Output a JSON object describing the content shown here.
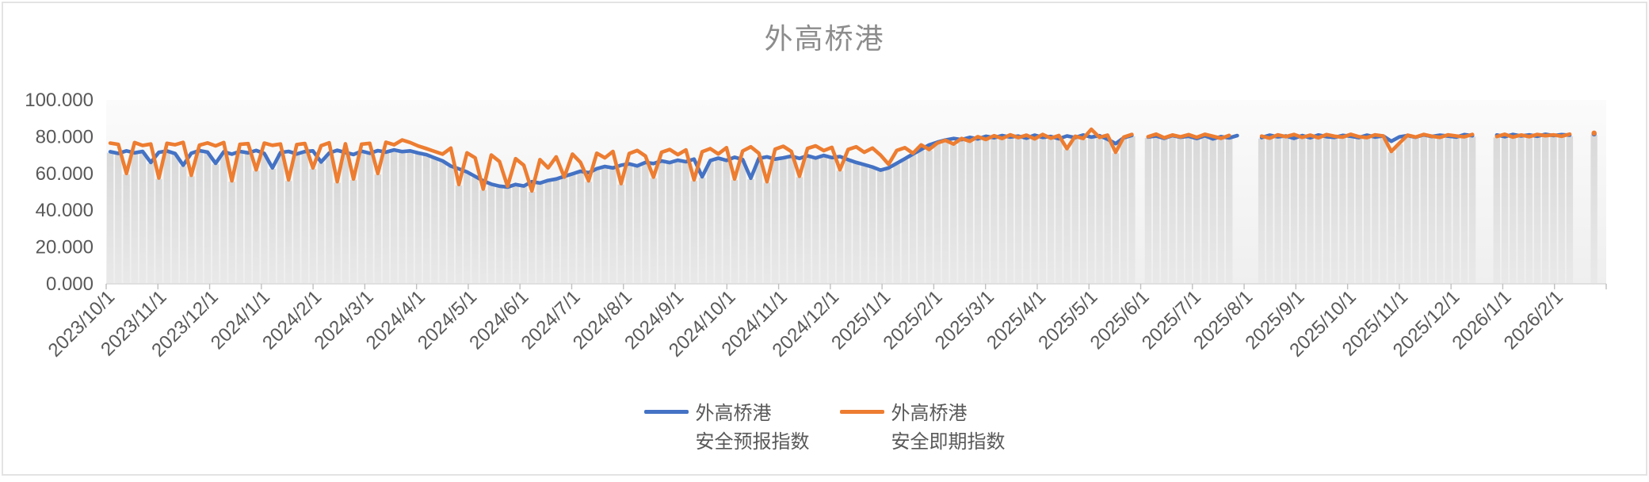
{
  "chart_data": {
    "type": "line",
    "title": "外高桥港",
    "ylim": [
      0,
      100
    ],
    "yticks": [
      {
        "value": 0,
        "label": "0.000"
      },
      {
        "value": 20,
        "label": "20.000"
      },
      {
        "value": 40,
        "label": "40.000"
      },
      {
        "value": 60,
        "label": "60.000"
      },
      {
        "value": 80,
        "label": "80.000"
      },
      {
        "value": 100,
        "label": "100.000"
      }
    ],
    "x_tick_labels": [
      "2023/10/1",
      "2023/11/1",
      "2023/12/1",
      "2024/1/1",
      "2024/2/1",
      "2024/3/1",
      "2024/4/1",
      "2024/5/1",
      "2024/6/1",
      "2024/7/1",
      "2024/8/1",
      "2024/9/1",
      "2024/10/1",
      "2024/11/1",
      "2024/12/1",
      "2025/1/1",
      "2025/2/1",
      "2025/3/1",
      "2025/4/1",
      "2025/5/1",
      "2025/6/1",
      "2025/7/1",
      "2025/8/1",
      "2025/9/1",
      "2025/10/1",
      "2025/11/1",
      "2025/12/1",
      "2026/1/1",
      "2026/2/1"
    ],
    "legend_position": "bottom",
    "grid": false,
    "background_columns": {
      "derived": "min(series values) - 0.5",
      "color_top": "#d9d9d9",
      "color_bottom": "#e9e9e9"
    },
    "axis_color": "#d9d9d9",
    "tick_color": "#bfbfbf",
    "label_color": "#595959",
    "series": [
      {
        "name": "外高桥港 安全预报指数",
        "color": "#4472C4",
        "values": [
          71.8,
          70.9,
          72.3,
          71.2,
          72.0,
          66.0,
          71.5,
          72.2,
          70.8,
          64.5,
          71.0,
          72.4,
          71.6,
          65.5,
          71.8,
          70.5,
          72.0,
          71.2,
          72.5,
          70.9,
          63.0,
          71.4,
          72.0,
          70.6,
          71.9,
          72.3,
          66.2,
          71.1,
          72.6,
          71.4,
          70.3,
          72.1,
          71.0,
          72.4,
          71.6,
          72.8,
          71.9,
          72.3,
          71.1,
          70.2,
          68.5,
          66.8,
          64.0,
          62.5,
          60.8,
          58.4,
          56.0,
          54.2,
          53.1,
          52.6,
          54.0,
          53.2,
          55.5,
          54.8,
          56.2,
          57.0,
          58.4,
          59.8,
          61.2,
          60.4,
          62.6,
          63.8,
          63.0,
          64.5,
          65.2,
          64.1,
          66.0,
          65.4,
          66.8,
          65.9,
          67.2,
          66.4,
          67.8,
          58.2,
          67.0,
          68.3,
          67.1,
          68.8,
          67.6,
          57.4,
          68.2,
          69.0,
          67.8,
          68.5,
          69.4,
          68.2,
          69.6,
          68.4,
          69.8,
          68.6,
          69.2,
          67.5,
          66.0,
          64.8,
          63.5,
          61.8,
          63.0,
          65.5,
          68.0,
          70.5,
          73.0,
          75.5,
          77.0,
          78.2,
          79.0,
          78.4,
          79.6,
          78.8,
          80.2,
          79.4,
          80.6,
          79.8,
          80.3,
          79.2,
          80.8,
          79.6,
          80.1,
          78.9,
          80.4,
          79.5,
          80.9,
          79.8,
          80.5,
          78.6,
          76.2,
          79.4,
          80.7,
          null,
          79.8,
          80.4,
          79.1,
          80.6,
          79.7,
          80.2,
          79.0,
          80.5,
          78.8,
          80.0,
          79.3,
          80.6,
          null,
          null,
          79.5,
          80.8,
          79.9,
          80.4,
          79.1,
          80.6,
          79.4,
          80.9,
          80.0,
          79.6,
          80.7,
          80.2,
          79.5,
          80.8,
          79.8,
          80.4,
          77.5,
          79.9,
          80.6,
          79.7,
          81.0,
          80.1,
          80.8,
          80.3,
          79.8,
          81.1,
          80.5,
          null,
          null,
          80.9,
          80.0,
          81.2,
          80.4,
          81.0,
          80.2,
          81.3,
          80.6,
          81.1,
          80.8,
          null,
          null,
          81.5,
          null
        ]
      },
      {
        "name": "外高桥港 安全即期指数",
        "color": "#ED7D31",
        "values": [
          76.5,
          75.8,
          60.0,
          76.8,
          75.2,
          76.0,
          57.5,
          76.4,
          75.6,
          76.9,
          59.0,
          75.4,
          76.6,
          75.0,
          76.8,
          56.0,
          75.8,
          76.2,
          62.0,
          76.5,
          75.3,
          76.0,
          56.5,
          75.7,
          76.3,
          63.0,
          75.1,
          76.7,
          55.5,
          76.1,
          57.0,
          75.9,
          76.4,
          60.0,
          77.0,
          75.6,
          78.2,
          76.8,
          74.9,
          73.5,
          72.0,
          70.5,
          73.8,
          54.0,
          71.2,
          68.5,
          51.5,
          70.0,
          66.5,
          53.0,
          68.0,
          64.5,
          50.5,
          67.5,
          63.0,
          69.0,
          58.0,
          70.5,
          66.0,
          56.0,
          71.0,
          68.5,
          72.0,
          54.5,
          70.8,
          72.5,
          69.5,
          58.0,
          71.5,
          73.0,
          70.2,
          72.8,
          56.5,
          71.8,
          73.5,
          70.6,
          74.0,
          57.0,
          72.2,
          74.5,
          71.0,
          55.5,
          73.2,
          74.8,
          72.0,
          58.5,
          73.6,
          75.0,
          72.4,
          74.2,
          62.0,
          73.0,
          74.5,
          71.5,
          73.8,
          70.0,
          65.0,
          72.5,
          74.0,
          71.0,
          75.5,
          73.0,
          76.5,
          78.0,
          76.0,
          79.0,
          77.5,
          80.0,
          78.5,
          80.5,
          79.0,
          81.0,
          79.5,
          80.8,
          78.8,
          81.2,
          79.2,
          80.6,
          73.5,
          80.2,
          79.0,
          84.0,
          79.6,
          80.8,
          71.5,
          79.8,
          81.2,
          null,
          80.0,
          81.4,
          79.4,
          80.9,
          79.9,
          81.1,
          79.6,
          81.3,
          80.2,
          79.1,
          80.7,
          null,
          null,
          null,
          80.3,
          79.2,
          81.0,
          80.0,
          81.2,
          79.6,
          80.8,
          79.4,
          81.1,
          80.2,
          79.8,
          81.3,
          80.0,
          79.5,
          81.0,
          80.4,
          72.0,
          76.5,
          80.8,
          79.8,
          81.2,
          80.2,
          79.6,
          81.0,
          80.4,
          79.9,
          81.2,
          null,
          null,
          80.1,
          81.3,
          79.8,
          80.9,
          80.0,
          81.2,
          80.5,
          81.0,
          80.2,
          81.4,
          null,
          null,
          82.0,
          null
        ]
      }
    ]
  },
  "legend": [
    {
      "line1": "外高桥港",
      "line2": "安全预报指数",
      "color": "#4472C4"
    },
    {
      "line1": "外高桥港",
      "line2": "安全即期指数",
      "color": "#ED7D31"
    }
  ]
}
